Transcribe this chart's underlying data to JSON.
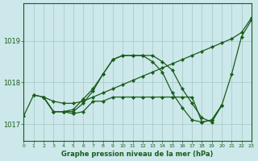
{
  "background_color": "#cce8ea",
  "grid_color": "#aacccc",
  "line_color": "#1a5c1a",
  "title": "Graphe pression niveau de la mer (hPa)",
  "xlim": [
    0,
    23
  ],
  "ylim": [
    1016.6,
    1019.9
  ],
  "yticks": [
    1017,
    1018,
    1019
  ],
  "xticks": [
    0,
    1,
    2,
    3,
    4,
    5,
    6,
    7,
    8,
    9,
    10,
    11,
    12,
    13,
    14,
    15,
    16,
    17,
    18,
    19,
    20,
    21,
    22,
    23
  ],
  "series": [
    {
      "x": [
        1,
        2,
        3,
        4,
        5,
        6,
        7,
        8,
        9,
        10,
        11,
        12,
        13,
        14,
        15,
        16,
        17,
        18,
        19,
        20,
        21,
        22,
        23
      ],
      "y": [
        1017.7,
        1017.65,
        1017.55,
        1017.5,
        1017.5,
        1017.55,
        1017.65,
        1017.75,
        1017.85,
        1017.95,
        1018.05,
        1018.15,
        1018.25,
        1018.35,
        1018.45,
        1018.55,
        1018.65,
        1018.75,
        1018.85,
        1018.95,
        1019.05,
        1019.2,
        1019.55
      ]
    },
    {
      "x": [
        0,
        1,
        2,
        3,
        4,
        5,
        6,
        7,
        8,
        9,
        10,
        11,
        12,
        13,
        14,
        15,
        16,
        17,
        18,
        19,
        20,
        21,
        22,
        23
      ],
      "y": [
        1017.2,
        1017.7,
        1017.65,
        1017.3,
        1017.3,
        1017.35,
        1017.6,
        1017.85,
        1018.2,
        1018.55,
        1018.65,
        1018.65,
        1018.65,
        1018.65,
        1018.5,
        1018.3,
        1017.85,
        1017.5,
        1017.15,
        1017.05,
        1017.45,
        1018.2,
        1019.1,
        1019.5
      ]
    },
    {
      "x": [
        2,
        3,
        4,
        5,
        6,
        7,
        8,
        9,
        10,
        11,
        12,
        13,
        14,
        15,
        16,
        17,
        18,
        19,
        20
      ],
      "y": [
        1017.65,
        1017.3,
        1017.3,
        1017.3,
        1017.5,
        1017.8,
        1018.2,
        1018.55,
        1018.65,
        1018.65,
        1018.65,
        1018.5,
        1018.25,
        1017.75,
        1017.4,
        1017.1,
        1017.05,
        1017.1,
        1017.45
      ]
    },
    {
      "x": [
        2,
        3,
        4,
        5,
        6,
        7,
        8,
        9,
        10,
        11,
        12,
        13,
        14,
        15,
        16,
        17,
        18,
        19,
        20
      ],
      "y": [
        1017.65,
        1017.3,
        1017.3,
        1017.25,
        1017.3,
        1017.55,
        1017.55,
        1017.65,
        1017.65,
        1017.65,
        1017.65,
        1017.65,
        1017.65,
        1017.65,
        1017.65,
        1017.65,
        1017.05,
        1017.1,
        1017.45
      ]
    }
  ]
}
